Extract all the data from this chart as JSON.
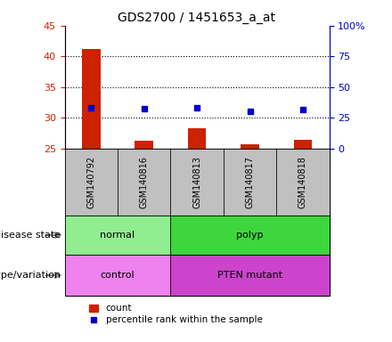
{
  "title": "GDS2700 / 1451653_a_at",
  "samples": [
    "GSM140792",
    "GSM140816",
    "GSM140813",
    "GSM140817",
    "GSM140818"
  ],
  "count_values": [
    41.2,
    26.3,
    28.4,
    25.8,
    26.4
  ],
  "percentile_values": [
    33.2,
    32.8,
    33.0,
    30.7,
    31.8
  ],
  "ylim_left": [
    25,
    45
  ],
  "ylim_right": [
    0,
    100
  ],
  "yticks_left": [
    25,
    30,
    35,
    40,
    45
  ],
  "yticks_right": [
    0,
    25,
    50,
    75,
    100
  ],
  "ytick_labels_right": [
    "0",
    "25",
    "50",
    "75",
    "100%"
  ],
  "grid_yticks": [
    30,
    35,
    40
  ],
  "disease_state_groups": [
    {
      "label": "normal",
      "start": 0,
      "end": 2,
      "color": "#90EE90"
    },
    {
      "label": "polyp",
      "start": 2,
      "end": 5,
      "color": "#3DD63D"
    }
  ],
  "genotype_groups": [
    {
      "label": "control",
      "start": 0,
      "end": 2,
      "color": "#EE82EE"
    },
    {
      "label": "PTEN mutant",
      "start": 2,
      "end": 5,
      "color": "#CC44CC"
    }
  ],
  "bar_color": "#CC2200",
  "dot_color": "#0000CC",
  "bar_width": 0.35,
  "tick_color_left": "#CC2200",
  "tick_color_right": "#0000CC",
  "x_tick_bg": "#C0C0C0",
  "label_disease": "disease state",
  "label_genotype": "genotype/variation",
  "legend_count_label": "count",
  "legend_perc_label": "percentile rank within the sample"
}
